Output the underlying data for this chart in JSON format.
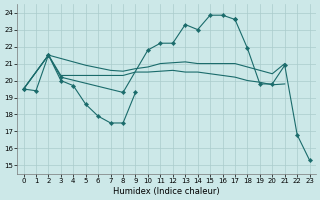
{
  "xlabel": "Humidex (Indice chaleur)",
  "bg_color": "#cce8e8",
  "grid_color": "#aacccc",
  "line_color": "#1a6b6b",
  "xlim": [
    -0.5,
    23.5
  ],
  "ylim": [
    14.5,
    24.5
  ],
  "xticks": [
    0,
    1,
    2,
    3,
    4,
    5,
    6,
    7,
    8,
    9,
    10,
    11,
    12,
    13,
    14,
    15,
    16,
    17,
    18,
    19,
    20,
    21,
    22,
    23
  ],
  "yticks": [
    15,
    16,
    17,
    18,
    19,
    20,
    21,
    22,
    23,
    24
  ],
  "curve1_x": [
    0,
    1,
    2,
    3,
    8,
    10,
    11,
    12,
    13,
    14,
    15,
    16,
    17
  ],
  "curve1_y": [
    19.5,
    19.4,
    21.5,
    20.2,
    19.3,
    21.8,
    22.2,
    22.2,
    23.3,
    23.0,
    23.85,
    23.85,
    23.6
  ],
  "curve2_x": [
    0,
    2,
    3,
    4,
    5,
    6,
    7,
    8,
    9
  ],
  "curve2_y": [
    19.5,
    21.5,
    20.0,
    19.7,
    18.6,
    17.9,
    17.5,
    17.5,
    19.3
  ],
  "curve3_x": [
    0,
    2,
    3,
    4,
    5,
    6,
    7,
    8,
    9,
    10,
    11,
    12,
    13,
    14,
    15,
    16,
    17,
    18,
    19,
    20,
    21
  ],
  "curve3_y": [
    19.5,
    21.5,
    21.3,
    21.1,
    20.9,
    20.75,
    20.6,
    20.55,
    20.7,
    20.8,
    21.0,
    21.05,
    21.1,
    21.0,
    21.0,
    21.0,
    21.0,
    20.8,
    20.6,
    20.4,
    21.0
  ],
  "curve4_x": [
    0,
    2,
    3,
    4,
    5,
    6,
    7,
    8,
    9,
    10,
    11,
    12,
    13,
    14,
    15,
    16,
    17,
    18,
    19,
    20,
    21
  ],
  "curve4_y": [
    19.5,
    21.5,
    20.3,
    20.3,
    20.3,
    20.3,
    20.3,
    20.3,
    20.5,
    20.5,
    20.55,
    20.6,
    20.5,
    20.5,
    20.4,
    20.3,
    20.2,
    20.0,
    19.9,
    19.75,
    19.8
  ],
  "curve5_x": [
    17,
    18,
    19,
    20,
    21,
    22,
    23
  ],
  "curve5_y": [
    23.6,
    21.9,
    19.8,
    19.8,
    20.9,
    16.8,
    15.3
  ],
  "lw": 0.8,
  "ms": 2.2
}
